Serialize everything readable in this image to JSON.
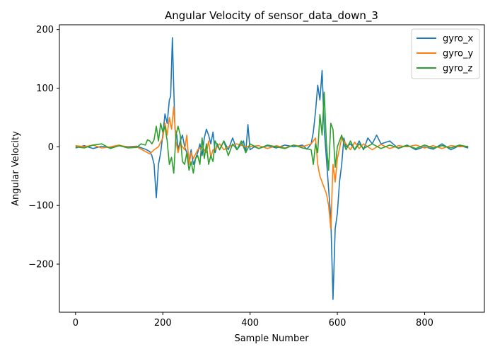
{
  "chart_data": {
    "type": "line",
    "title": "Angular Velocity of sensor_data_down_3",
    "xlabel": "Sample Number",
    "ylabel": "Angular Velocity",
    "xlim": [
      -37,
      937
    ],
    "ylim": [
      -282,
      208
    ],
    "x_ticks": [
      0,
      200,
      400,
      600,
      800
    ],
    "y_ticks": [
      -200,
      -100,
      0,
      100,
      200
    ],
    "x_tick_labels": [
      "0",
      "200",
      "400",
      "600",
      "800"
    ],
    "y_tick_labels": [
      "−200",
      "−100",
      "0",
      "100",
      "200"
    ],
    "grid": false,
    "legend_position": "upper right",
    "series": [
      {
        "name": "gyro_x",
        "color": "#1f77b4",
        "points": [
          [
            0,
            -2
          ],
          [
            20,
            2
          ],
          [
            40,
            -3
          ],
          [
            60,
            1
          ],
          [
            80,
            -2
          ],
          [
            100,
            2
          ],
          [
            120,
            0
          ],
          [
            140,
            1
          ],
          [
            160,
            -4
          ],
          [
            170,
            -8
          ],
          [
            175,
            -15
          ],
          [
            180,
            -30
          ],
          [
            185,
            -87
          ],
          [
            190,
            -30
          ],
          [
            195,
            -10
          ],
          [
            200,
            20
          ],
          [
            205,
            56
          ],
          [
            210,
            40
          ],
          [
            215,
            80
          ],
          [
            218,
            86
          ],
          [
            222,
            186
          ],
          [
            225,
            100
          ],
          [
            228,
            30
          ],
          [
            232,
            20
          ],
          [
            235,
            -5
          ],
          [
            240,
            10
          ],
          [
            245,
            20
          ],
          [
            250,
            0
          ],
          [
            255,
            -10
          ],
          [
            260,
            -25
          ],
          [
            265,
            -5
          ],
          [
            270,
            -30
          ],
          [
            275,
            -20
          ],
          [
            280,
            -10
          ],
          [
            285,
            5
          ],
          [
            290,
            -15
          ],
          [
            295,
            15
          ],
          [
            300,
            30
          ],
          [
            305,
            20
          ],
          [
            310,
            5
          ],
          [
            315,
            25
          ],
          [
            320,
            -10
          ],
          [
            325,
            5
          ],
          [
            330,
            -5
          ],
          [
            340,
            10
          ],
          [
            350,
            -5
          ],
          [
            360,
            15
          ],
          [
            370,
            -5
          ],
          [
            380,
            5
          ],
          [
            385,
            10
          ],
          [
            390,
            -10
          ],
          [
            395,
            38
          ],
          [
            400,
            -5
          ],
          [
            410,
            0
          ],
          [
            420,
            -3
          ],
          [
            440,
            2
          ],
          [
            460,
            -2
          ],
          [
            480,
            3
          ],
          [
            500,
            0
          ],
          [
            520,
            3
          ],
          [
            530,
            -4
          ],
          [
            540,
            5
          ],
          [
            545,
            25
          ],
          [
            550,
            60
          ],
          [
            555,
            105
          ],
          [
            560,
            80
          ],
          [
            565,
            130
          ],
          [
            570,
            30
          ],
          [
            575,
            -20
          ],
          [
            580,
            -72
          ],
          [
            585,
            -120
          ],
          [
            590,
            -260
          ],
          [
            595,
            -140
          ],
          [
            600,
            -113
          ],
          [
            605,
            -60
          ],
          [
            610,
            -30
          ],
          [
            615,
            15
          ],
          [
            620,
            0
          ],
          [
            630,
            5
          ],
          [
            640,
            -5
          ],
          [
            650,
            10
          ],
          [
            660,
            -5
          ],
          [
            670,
            15
          ],
          [
            680,
            5
          ],
          [
            690,
            20
          ],
          [
            700,
            5
          ],
          [
            720,
            10
          ],
          [
            740,
            -3
          ],
          [
            760,
            3
          ],
          [
            780,
            -5
          ],
          [
            800,
            0
          ],
          [
            820,
            -4
          ],
          [
            840,
            5
          ],
          [
            860,
            -5
          ],
          [
            880,
            2
          ],
          [
            900,
            -2
          ]
        ]
      },
      {
        "name": "gyro_y",
        "color": "#ff7f0e",
        "points": [
          [
            0,
            2
          ],
          [
            20,
            0
          ],
          [
            40,
            3
          ],
          [
            60,
            -2
          ],
          [
            80,
            0
          ],
          [
            100,
            3
          ],
          [
            120,
            -1
          ],
          [
            140,
            0
          ],
          [
            160,
            -8
          ],
          [
            170,
            -12
          ],
          [
            180,
            -5
          ],
          [
            190,
            0
          ],
          [
            200,
            15
          ],
          [
            205,
            40
          ],
          [
            210,
            20
          ],
          [
            215,
            50
          ],
          [
            220,
            30
          ],
          [
            225,
            68
          ],
          [
            230,
            10
          ],
          [
            235,
            -10
          ],
          [
            240,
            5
          ],
          [
            250,
            -5
          ],
          [
            255,
            20
          ],
          [
            260,
            -30
          ],
          [
            265,
            -10
          ],
          [
            270,
            -20
          ],
          [
            280,
            -5
          ],
          [
            290,
            0
          ],
          [
            300,
            -10
          ],
          [
            305,
            10
          ],
          [
            310,
            -18
          ],
          [
            315,
            -5
          ],
          [
            320,
            -5
          ],
          [
            330,
            5
          ],
          [
            340,
            -5
          ],
          [
            350,
            0
          ],
          [
            370,
            5
          ],
          [
            390,
            0
          ],
          [
            420,
            2
          ],
          [
            440,
            -3
          ],
          [
            460,
            2
          ],
          [
            480,
            -2
          ],
          [
            500,
            3
          ],
          [
            520,
            0
          ],
          [
            540,
            5
          ],
          [
            545,
            10
          ],
          [
            550,
            15
          ],
          [
            555,
            -30
          ],
          [
            560,
            -50
          ],
          [
            565,
            -60
          ],
          [
            570,
            -70
          ],
          [
            575,
            -80
          ],
          [
            580,
            -100
          ],
          [
            585,
            -140
          ],
          [
            590,
            -30
          ],
          [
            595,
            -60
          ],
          [
            600,
            -20
          ],
          [
            610,
            15
          ],
          [
            620,
            5
          ],
          [
            630,
            -5
          ],
          [
            640,
            8
          ],
          [
            650,
            -3
          ],
          [
            660,
            5
          ],
          [
            680,
            -5
          ],
          [
            700,
            4
          ],
          [
            720,
            -3
          ],
          [
            740,
            2
          ],
          [
            760,
            0
          ],
          [
            780,
            3
          ],
          [
            800,
            -2
          ],
          [
            820,
            2
          ],
          [
            840,
            -3
          ],
          [
            860,
            2
          ],
          [
            880,
            0
          ],
          [
            900,
            1
          ]
        ]
      },
      {
        "name": "gyro_z",
        "color": "#2ca02c",
        "points": [
          [
            0,
            0
          ],
          [
            20,
            -2
          ],
          [
            40,
            3
          ],
          [
            60,
            5
          ],
          [
            80,
            -3
          ],
          [
            100,
            2
          ],
          [
            120,
            -2
          ],
          [
            140,
            -1
          ],
          [
            150,
            5
          ],
          [
            160,
            3
          ],
          [
            165,
            12
          ],
          [
            170,
            10
          ],
          [
            175,
            5
          ],
          [
            180,
            12
          ],
          [
            185,
            35
          ],
          [
            190,
            10
          ],
          [
            195,
            40
          ],
          [
            200,
            25
          ],
          [
            205,
            35
          ],
          [
            210,
            10
          ],
          [
            215,
            -30
          ],
          [
            220,
            -18
          ],
          [
            225,
            -45
          ],
          [
            230,
            20
          ],
          [
            235,
            35
          ],
          [
            240,
            20
          ],
          [
            245,
            -25
          ],
          [
            250,
            -30
          ],
          [
            255,
            -10
          ],
          [
            260,
            -40
          ],
          [
            265,
            -25
          ],
          [
            270,
            -45
          ],
          [
            275,
            -20
          ],
          [
            280,
            -15
          ],
          [
            285,
            -30
          ],
          [
            290,
            15
          ],
          [
            295,
            -20
          ],
          [
            300,
            5
          ],
          [
            305,
            -30
          ],
          [
            310,
            -15
          ],
          [
            315,
            -25
          ],
          [
            320,
            10
          ],
          [
            330,
            -5
          ],
          [
            340,
            10
          ],
          [
            350,
            -15
          ],
          [
            360,
            5
          ],
          [
            370,
            -5
          ],
          [
            380,
            10
          ],
          [
            390,
            -10
          ],
          [
            400,
            5
          ],
          [
            420,
            -3
          ],
          [
            440,
            3
          ],
          [
            460,
            0
          ],
          [
            480,
            -3
          ],
          [
            500,
            3
          ],
          [
            520,
            -2
          ],
          [
            540,
            -5
          ],
          [
            545,
            -30
          ],
          [
            550,
            5
          ],
          [
            555,
            -10
          ],
          [
            560,
            55
          ],
          [
            565,
            20
          ],
          [
            570,
            93
          ],
          [
            575,
            5
          ],
          [
            580,
            -40
          ],
          [
            585,
            40
          ],
          [
            590,
            30
          ],
          [
            595,
            -35
          ],
          [
            600,
            0
          ],
          [
            605,
            10
          ],
          [
            610,
            20
          ],
          [
            615,
            5
          ],
          [
            620,
            -5
          ],
          [
            630,
            10
          ],
          [
            640,
            -5
          ],
          [
            650,
            5
          ],
          [
            660,
            -3
          ],
          [
            680,
            5
          ],
          [
            700,
            -3
          ],
          [
            720,
            3
          ],
          [
            740,
            -2
          ],
          [
            760,
            2
          ],
          [
            780,
            -3
          ],
          [
            800,
            3
          ],
          [
            820,
            -2
          ],
          [
            840,
            2
          ],
          [
            860,
            -2
          ],
          [
            880,
            3
          ],
          [
            900,
            0
          ]
        ]
      }
    ]
  }
}
